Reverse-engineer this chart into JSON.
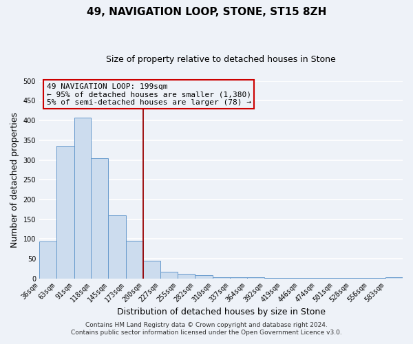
{
  "title": "49, NAVIGATION LOOP, STONE, ST15 8ZH",
  "subtitle": "Size of property relative to detached houses in Stone",
  "xlabel": "Distribution of detached houses by size in Stone",
  "ylabel": "Number of detached properties",
  "bin_labels": [
    "36sqm",
    "63sqm",
    "91sqm",
    "118sqm",
    "145sqm",
    "173sqm",
    "200sqm",
    "227sqm",
    "255sqm",
    "282sqm",
    "310sqm",
    "337sqm",
    "364sqm",
    "392sqm",
    "419sqm",
    "446sqm",
    "474sqm",
    "501sqm",
    "528sqm",
    "556sqm",
    "583sqm"
  ],
  "bin_edges": [
    36,
    63,
    91,
    118,
    145,
    173,
    200,
    227,
    255,
    282,
    310,
    337,
    364,
    392,
    419,
    446,
    474,
    501,
    528,
    556,
    583
  ],
  "bar_heights": [
    93,
    336,
    407,
    304,
    160,
    96,
    44,
    17,
    11,
    8,
    2,
    2,
    2,
    1,
    1,
    1,
    1,
    1,
    1,
    1,
    2
  ],
  "bar_color": "#ccdcee",
  "bar_edge_color": "#6699cc",
  "vline_x": 200,
  "vline_color": "#990000",
  "annotation_lines": [
    "49 NAVIGATION LOOP: 199sqm",
    "← 95% of detached houses are smaller (1,380)",
    "5% of semi-detached houses are larger (78) →"
  ],
  "annotation_box_color": "#cc0000",
  "ylim": [
    0,
    500
  ],
  "yticks": [
    0,
    50,
    100,
    150,
    200,
    250,
    300,
    350,
    400,
    450,
    500
  ],
  "footer_lines": [
    "Contains HM Land Registry data © Crown copyright and database right 2024.",
    "Contains public sector information licensed under the Open Government Licence v3.0."
  ],
  "background_color": "#eef2f8",
  "grid_color": "#ffffff",
  "title_fontsize": 11,
  "subtitle_fontsize": 9,
  "axis_label_fontsize": 9,
  "tick_fontsize": 7,
  "annotation_fontsize": 8,
  "footer_fontsize": 6.5
}
